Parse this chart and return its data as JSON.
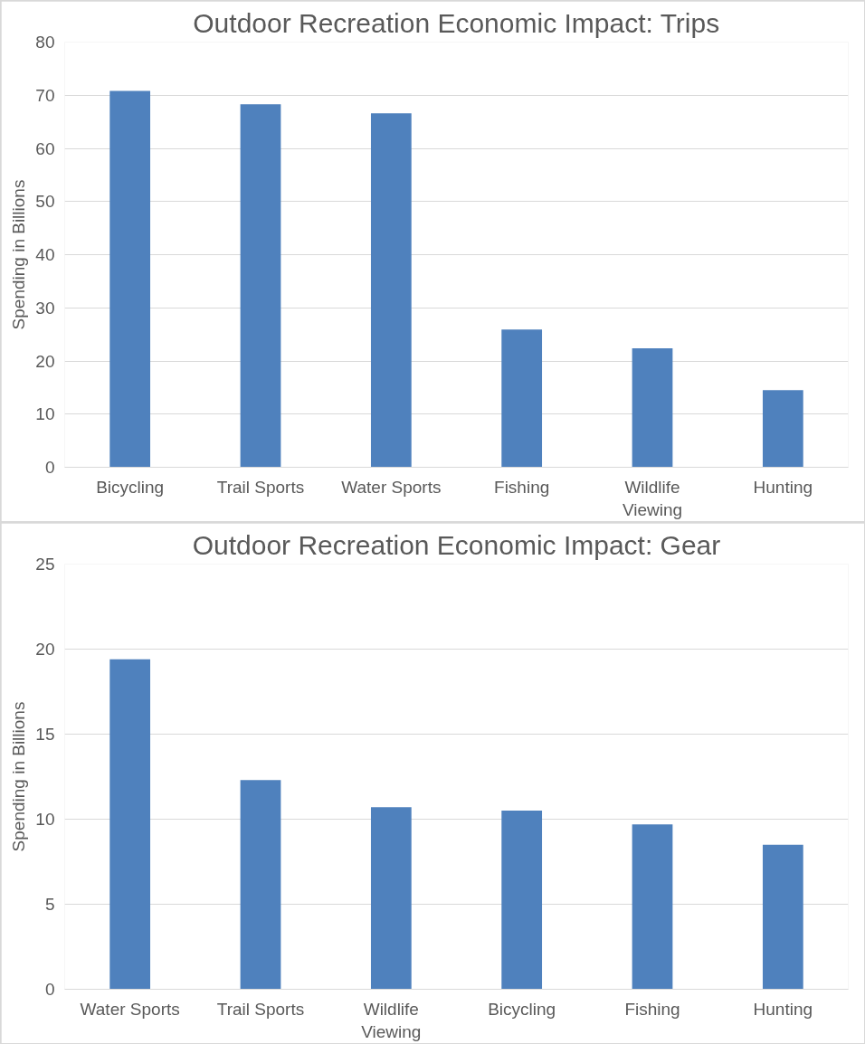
{
  "chart_data": [
    {
      "type": "bar",
      "title": "Outdoor Recreation Economic Impact: Trips",
      "ylabel": "Spending in Billions",
      "categories": [
        "Bicycling",
        "Trail Sports",
        "Water Sports",
        "Fishing",
        "Wildlife Viewing",
        "Hunting"
      ],
      "values": [
        70.8,
        68.3,
        66.6,
        25.9,
        22.4,
        14.5
      ],
      "color": "#4f81bd",
      "ylim": [
        0,
        80
      ],
      "yticks": [
        0,
        10,
        20,
        30,
        40,
        50,
        60,
        70,
        80
      ],
      "grid": "y",
      "legend": false
    },
    {
      "type": "bar",
      "title": "Outdoor Recreation Economic Impact: Gear",
      "ylabel": "Spending in Billions",
      "categories": [
        "Water Sports",
        "Trail Sports",
        "Wildlife Viewing",
        "Bicycling",
        "Fishing",
        "Hunting"
      ],
      "values": [
        19.4,
        12.3,
        10.7,
        10.5,
        9.7,
        8.5
      ],
      "color": "#4f81bd",
      "ylim": [
        0,
        25
      ],
      "yticks": [
        0,
        5,
        10,
        15,
        20,
        25
      ],
      "grid": "y",
      "legend": false
    }
  ]
}
